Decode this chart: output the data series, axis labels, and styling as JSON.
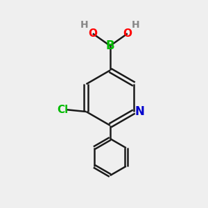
{
  "bg_color": "#efefef",
  "bond_color": "#1a1a1a",
  "bond_width": 1.8,
  "atom_colors": {
    "B": "#00bb00",
    "O": "#ff0000",
    "H": "#888888",
    "N": "#0000cc",
    "Cl": "#00bb00",
    "C": "#1a1a1a"
  },
  "font_size": 10,
  "fig_size": [
    3.0,
    3.0
  ],
  "dpi": 100
}
